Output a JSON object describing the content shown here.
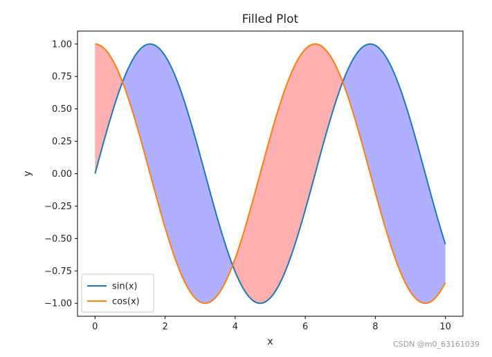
{
  "chart_data": {
    "type": "line",
    "title": "Filled Plot",
    "xlabel": "x",
    "ylabel": "y",
    "xlim": [
      -0.5,
      10.5
    ],
    "ylim": [
      -1.1,
      1.1
    ],
    "x_range": [
      0,
      10
    ],
    "xticks": [
      0,
      2,
      4,
      6,
      8,
      10
    ],
    "xtick_labels": [
      "0",
      "2",
      "4",
      "6",
      "8",
      "10"
    ],
    "yticks": [
      1.0,
      0.75,
      0.5,
      0.25,
      0.0,
      -0.25,
      -0.5,
      -0.75,
      -1.0
    ],
    "ytick_labels": [
      "1.00",
      "0.75",
      "0.50",
      "0.25",
      "0.00",
      "−0.25",
      "−0.50",
      "−0.75",
      "−1.00"
    ],
    "grid": false,
    "legend_position": "lower-left",
    "series": [
      {
        "name": "sin(x)",
        "function": "sin",
        "color": "#1f77b4"
      },
      {
        "name": "cos(x)",
        "function": "cos",
        "color": "#ff7f0e"
      }
    ],
    "fill_between": {
      "sin_above_cos_color": "#b0b0ff",
      "cos_above_sin_color": "#ffb0b0"
    }
  },
  "watermark": "CSDN @m0_63161039"
}
